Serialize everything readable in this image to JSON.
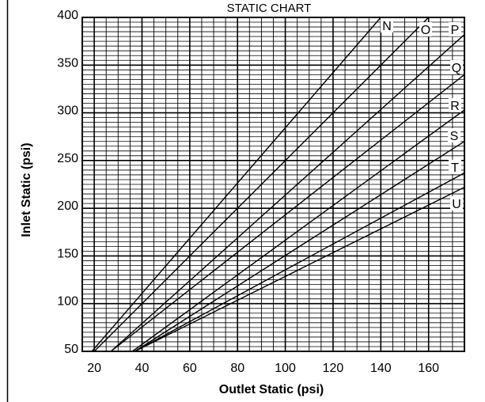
{
  "chart_data": {
    "type": "line",
    "title": "STATIC CHART",
    "xlabel": "Outlet Static (psi)",
    "ylabel": "Inlet Static (psi)",
    "xlim": [
      15,
      175
    ],
    "ylim": [
      50,
      400
    ],
    "x_ticks": [
      "20",
      "40",
      "60",
      "80",
      "100",
      "120",
      "140",
      "160"
    ],
    "y_ticks": [
      "50",
      "100",
      "150",
      "200",
      "250",
      "300",
      "350",
      "400"
    ],
    "grid": true,
    "series": [
      {
        "name": "N",
        "x": [
          19,
          140
        ],
        "y": [
          50,
          400
        ]
      },
      {
        "name": "O",
        "x": [
          20,
          160
        ],
        "y": [
          50,
          400
        ]
      },
      {
        "name": "P",
        "x": [
          27,
          175
        ],
        "y": [
          50,
          382
        ]
      },
      {
        "name": "Q",
        "x": [
          27,
          175
        ],
        "y": [
          50,
          340
        ]
      },
      {
        "name": "R",
        "x": [
          36,
          175
        ],
        "y": [
          50,
          303
        ]
      },
      {
        "name": "S",
        "x": [
          37,
          175
        ],
        "y": [
          50,
          270
        ]
      },
      {
        "name": "T",
        "x": [
          37,
          175
        ],
        "y": [
          50,
          237
        ]
      },
      {
        "name": "U",
        "x": [
          37,
          175
        ],
        "y": [
          50,
          222
        ]
      }
    ]
  }
}
